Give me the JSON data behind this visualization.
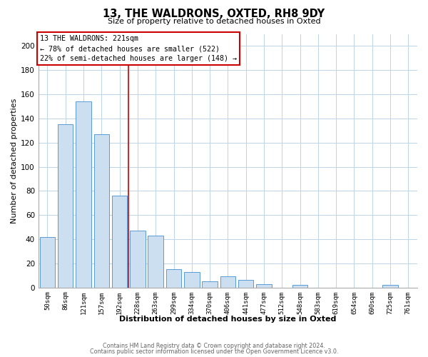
{
  "title": "13, THE WALDRONS, OXTED, RH8 9DY",
  "subtitle": "Size of property relative to detached houses in Oxted",
  "xlabel": "Distribution of detached houses by size in Oxted",
  "ylabel": "Number of detached properties",
  "bar_labels": [
    "50sqm",
    "86sqm",
    "121sqm",
    "157sqm",
    "192sqm",
    "228sqm",
    "263sqm",
    "299sqm",
    "334sqm",
    "370sqm",
    "406sqm",
    "441sqm",
    "477sqm",
    "512sqm",
    "548sqm",
    "583sqm",
    "619sqm",
    "654sqm",
    "690sqm",
    "725sqm",
    "761sqm"
  ],
  "bar_values": [
    42,
    135,
    154,
    127,
    76,
    47,
    43,
    15,
    13,
    5,
    9,
    6,
    3,
    0,
    2,
    0,
    0,
    0,
    0,
    2,
    0
  ],
  "bar_color": "#ccdff0",
  "bar_edge_color": "#5b9bd5",
  "annotation_title": "13 THE WALDRONS: 221sqm",
  "annotation_line1": "← 78% of detached houses are smaller (522)",
  "annotation_line2": "22% of semi-detached houses are larger (148) →",
  "annotation_box_color": "#ffffff",
  "annotation_box_edge_color": "#cc0000",
  "reference_line_color": "#cc0000",
  "ylim": [
    0,
    210
  ],
  "yticks": [
    0,
    20,
    40,
    60,
    80,
    100,
    120,
    140,
    160,
    180,
    200
  ],
  "footer1": "Contains HM Land Registry data © Crown copyright and database right 2024.",
  "footer2": "Contains public sector information licensed under the Open Government Licence v3.0.",
  "background_color": "#ffffff",
  "grid_color": "#c0d4e8"
}
